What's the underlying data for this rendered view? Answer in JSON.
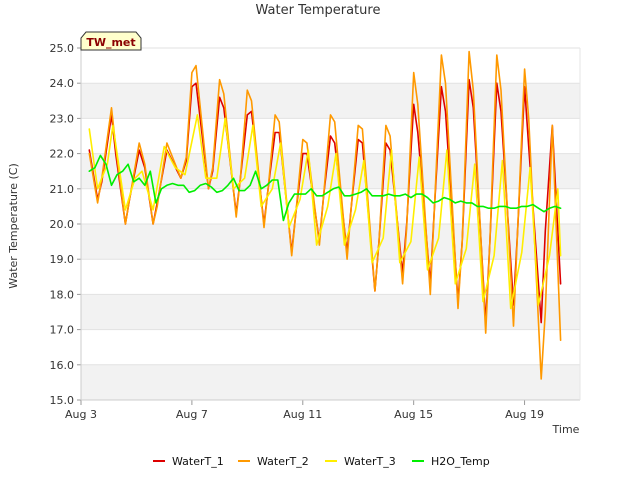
{
  "chart_data": {
    "type": "line",
    "title": "Water Temperature",
    "xlabel": "Time",
    "ylabel": "Water Temperature (C)",
    "badge": "TW_met",
    "xlim": [
      0,
      18
    ],
    "ylim": [
      15.0,
      25.0
    ],
    "x_ticks": [
      {
        "value": 0,
        "label": "Aug 3"
      },
      {
        "value": 4,
        "label": "Aug 7"
      },
      {
        "value": 8,
        "label": "Aug 11"
      },
      {
        "value": 12,
        "label": "Aug 15"
      },
      {
        "value": 16,
        "label": "Aug 19"
      }
    ],
    "y_ticks": [
      15.0,
      16.0,
      17.0,
      18.0,
      19.0,
      20.0,
      21.0,
      22.0,
      23.0,
      24.0,
      25.0
    ],
    "bands": [
      [
        15,
        16
      ],
      [
        17,
        18
      ],
      [
        19,
        20
      ],
      [
        21,
        22
      ],
      [
        23,
        24
      ]
    ],
    "band_color": "#f2f2f2",
    "series": [
      {
        "name": "WaterT_1",
        "color": "#dd0000",
        "x": [
          0.3,
          0.6,
          0.75,
          1.1,
          1.25,
          1.6,
          1.75,
          2.1,
          2.3,
          2.6,
          2.75,
          3.1,
          3.6,
          3.8,
          4.0,
          4.15,
          4.6,
          4.75,
          5.0,
          5.15,
          5.6,
          5.75,
          6.0,
          6.15,
          6.6,
          6.75,
          7.0,
          7.15,
          7.6,
          7.75,
          8.0,
          8.15,
          8.6,
          8.75,
          9.0,
          9.15,
          9.6,
          9.75,
          10.0,
          10.15,
          10.6,
          10.75,
          11.0,
          11.15,
          11.6,
          11.75,
          12.0,
          12.15,
          12.6,
          12.75,
          13.0,
          13.15,
          13.6,
          13.75,
          14.0,
          14.15,
          14.6,
          14.75,
          15.0,
          15.15,
          15.6,
          15.75,
          16.0,
          16.15,
          16.6,
          16.75,
          17.0,
          17.3
        ],
        "y": [
          22.1,
          20.7,
          21.2,
          23.1,
          22.0,
          20.0,
          20.7,
          22.1,
          21.6,
          20.0,
          20.6,
          22.1,
          21.3,
          21.8,
          23.9,
          24.0,
          21.0,
          21.5,
          23.6,
          23.3,
          20.3,
          21.3,
          23.1,
          23.2,
          20.0,
          21.0,
          22.6,
          22.6,
          19.2,
          20.3,
          22.0,
          22.0,
          19.5,
          20.8,
          22.5,
          22.3,
          19.2,
          20.5,
          22.4,
          22.3,
          18.1,
          19.5,
          22.3,
          22.1,
          18.6,
          20.0,
          23.4,
          22.6,
          18.3,
          20.5,
          23.9,
          23.2,
          17.8,
          19.5,
          24.1,
          23.3,
          17.2,
          19.5,
          24.0,
          23.2,
          17.7,
          19.8,
          23.9,
          22.2,
          17.2,
          19.8,
          22.8,
          18.3
        ]
      },
      {
        "name": "WaterT_2",
        "color": "#ff9900",
        "x": [
          0.3,
          0.6,
          0.75,
          1.1,
          1.25,
          1.6,
          1.75,
          2.1,
          2.3,
          2.6,
          2.75,
          3.1,
          3.6,
          3.8,
          4.0,
          4.15,
          4.6,
          4.75,
          5.0,
          5.15,
          5.6,
          5.75,
          6.0,
          6.15,
          6.6,
          6.75,
          7.0,
          7.15,
          7.6,
          7.75,
          8.0,
          8.15,
          8.6,
          8.75,
          9.0,
          9.15,
          9.6,
          9.75,
          10.0,
          10.15,
          10.6,
          10.75,
          11.0,
          11.15,
          11.6,
          11.75,
          12.0,
          12.15,
          12.6,
          12.75,
          13.0,
          13.15,
          13.6,
          13.75,
          14.0,
          14.15,
          14.6,
          14.75,
          15.0,
          15.15,
          15.6,
          15.75,
          16.0,
          16.15,
          16.6,
          16.75,
          17.0,
          17.3
        ],
        "y": [
          22.0,
          20.6,
          21.3,
          23.3,
          22.2,
          20.0,
          20.7,
          22.3,
          21.7,
          20.0,
          20.5,
          22.3,
          21.3,
          21.9,
          24.3,
          24.5,
          21.0,
          21.6,
          24.1,
          23.7,
          20.2,
          21.3,
          23.8,
          23.5,
          19.9,
          21.0,
          23.1,
          22.9,
          19.1,
          20.3,
          22.4,
          22.3,
          19.4,
          20.8,
          23.1,
          22.9,
          19.0,
          20.5,
          22.8,
          22.7,
          18.1,
          19.5,
          22.8,
          22.5,
          18.3,
          19.9,
          24.3,
          23.4,
          18.0,
          20.5,
          24.8,
          24.0,
          17.6,
          19.5,
          24.9,
          23.8,
          16.9,
          19.5,
          24.8,
          23.8,
          17.1,
          19.8,
          24.4,
          23.0,
          15.6,
          17.5,
          22.8,
          16.7
        ]
      },
      {
        "name": "WaterT_3",
        "color": "#ffee00",
        "x": [
          0.3,
          0.6,
          0.95,
          1.15,
          1.6,
          1.95,
          2.2,
          2.6,
          3.0,
          3.4,
          3.75,
          4.2,
          4.5,
          4.9,
          5.2,
          5.5,
          5.9,
          6.2,
          6.5,
          6.9,
          7.2,
          7.5,
          7.9,
          8.2,
          8.5,
          8.9,
          9.2,
          9.5,
          9.9,
          10.2,
          10.5,
          10.9,
          11.2,
          11.5,
          11.9,
          12.2,
          12.5,
          12.9,
          13.2,
          13.5,
          13.9,
          14.2,
          14.5,
          14.9,
          15.2,
          15.5,
          15.9,
          16.2,
          16.5,
          16.9,
          17.2,
          17.3
        ],
        "y": [
          22.7,
          21.0,
          21.7,
          22.8,
          20.4,
          21.3,
          21.5,
          20.4,
          22.2,
          21.6,
          21.4,
          23.1,
          21.3,
          21.3,
          23.0,
          21.0,
          21.3,
          22.8,
          20.5,
          21.0,
          22.3,
          19.9,
          20.7,
          22.1,
          19.4,
          20.5,
          22.0,
          19.4,
          20.4,
          21.8,
          18.9,
          19.6,
          22.1,
          18.9,
          19.5,
          21.9,
          18.7,
          19.6,
          22.1,
          18.3,
          19.3,
          21.7,
          17.8,
          19.1,
          21.8,
          17.6,
          19.2,
          21.6,
          17.7,
          19.1,
          21.0,
          19.1
        ]
      },
      {
        "name": "H2O_Temp",
        "color": "#00ee00",
        "x": [
          0.3,
          0.5,
          0.7,
          0.9,
          1.1,
          1.3,
          1.5,
          1.7,
          1.9,
          2.1,
          2.3,
          2.5,
          2.7,
          2.9,
          3.1,
          3.3,
          3.5,
          3.7,
          3.9,
          4.1,
          4.3,
          4.5,
          4.7,
          4.9,
          5.1,
          5.3,
          5.5,
          5.7,
          5.9,
          6.1,
          6.3,
          6.5,
          6.7,
          6.9,
          7.1,
          7.3,
          7.5,
          7.7,
          7.9,
          8.1,
          8.3,
          8.5,
          8.7,
          8.9,
          9.1,
          9.3,
          9.5,
          9.7,
          9.9,
          10.1,
          10.3,
          10.5,
          10.7,
          10.9,
          11.1,
          11.3,
          11.5,
          11.7,
          11.9,
          12.1,
          12.3,
          12.5,
          12.7,
          12.9,
          13.1,
          13.3,
          13.5,
          13.7,
          13.9,
          14.1,
          14.3,
          14.5,
          14.7,
          14.9,
          15.1,
          15.3,
          15.5,
          15.7,
          15.9,
          16.1,
          16.3,
          16.5,
          16.7,
          16.9,
          17.1,
          17.3
        ],
        "y": [
          21.5,
          21.6,
          21.95,
          21.7,
          21.1,
          21.4,
          21.5,
          21.7,
          21.2,
          21.3,
          21.1,
          21.5,
          20.6,
          21.0,
          21.1,
          21.15,
          21.1,
          21.1,
          20.9,
          20.95,
          21.1,
          21.15,
          21.05,
          20.9,
          20.95,
          21.1,
          21.3,
          20.95,
          20.95,
          21.1,
          21.5,
          21.0,
          21.1,
          21.25,
          21.25,
          20.1,
          20.6,
          20.85,
          20.85,
          20.85,
          21.0,
          20.8,
          20.8,
          20.9,
          21.0,
          21.05,
          20.8,
          20.8,
          20.85,
          20.9,
          21.0,
          20.8,
          20.8,
          20.8,
          20.85,
          20.8,
          20.8,
          20.85,
          20.75,
          20.85,
          20.85,
          20.75,
          20.6,
          20.65,
          20.75,
          20.7,
          20.6,
          20.65,
          20.6,
          20.6,
          20.5,
          20.5,
          20.45,
          20.45,
          20.5,
          20.5,
          20.45,
          20.45,
          20.5,
          20.5,
          20.55,
          20.45,
          20.35,
          20.45,
          20.5,
          20.45
        ]
      }
    ]
  }
}
